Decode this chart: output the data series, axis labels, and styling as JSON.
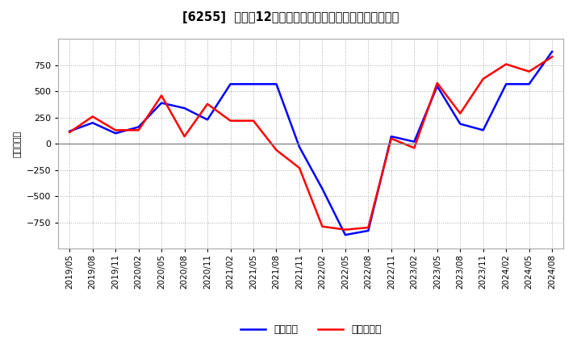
{
  "title": "[6255]  利益だ12か月移動合計の対前年同期増減額の推移",
  "ylabel": "（百万円）",
  "background_color": "#ffffff",
  "plot_bg_color": "#ffffff",
  "grid_color": "#aaaaaa",
  "x_labels": [
    "2019/05",
    "2019/08",
    "2019/11",
    "2020/02",
    "2020/05",
    "2020/08",
    "2020/11",
    "2021/02",
    "2021/05",
    "2021/08",
    "2021/11",
    "2022/02",
    "2022/05",
    "2022/08",
    "2022/11",
    "2023/02",
    "2023/05",
    "2023/08",
    "2023/11",
    "2024/02",
    "2024/05",
    "2024/08"
  ],
  "keijo_rieki": [
    120,
    200,
    100,
    160,
    390,
    340,
    230,
    570,
    570,
    570,
    -30,
    -430,
    -870,
    -830,
    70,
    20,
    550,
    190,
    130,
    570,
    570,
    880
  ],
  "junrieki": [
    110,
    260,
    130,
    130,
    460,
    70,
    380,
    220,
    220,
    -60,
    -230,
    -790,
    -820,
    -800,
    50,
    -40,
    580,
    290,
    620,
    760,
    690,
    830
  ],
  "line_color_blue": "#0000ff",
  "line_color_red": "#ff0000",
  "ylim": [
    -1000,
    1000
  ],
  "yticks": [
    -750,
    -500,
    -250,
    0,
    250,
    500,
    750
  ],
  "legend_blue": "経常利益",
  "legend_red": "当期純利益"
}
